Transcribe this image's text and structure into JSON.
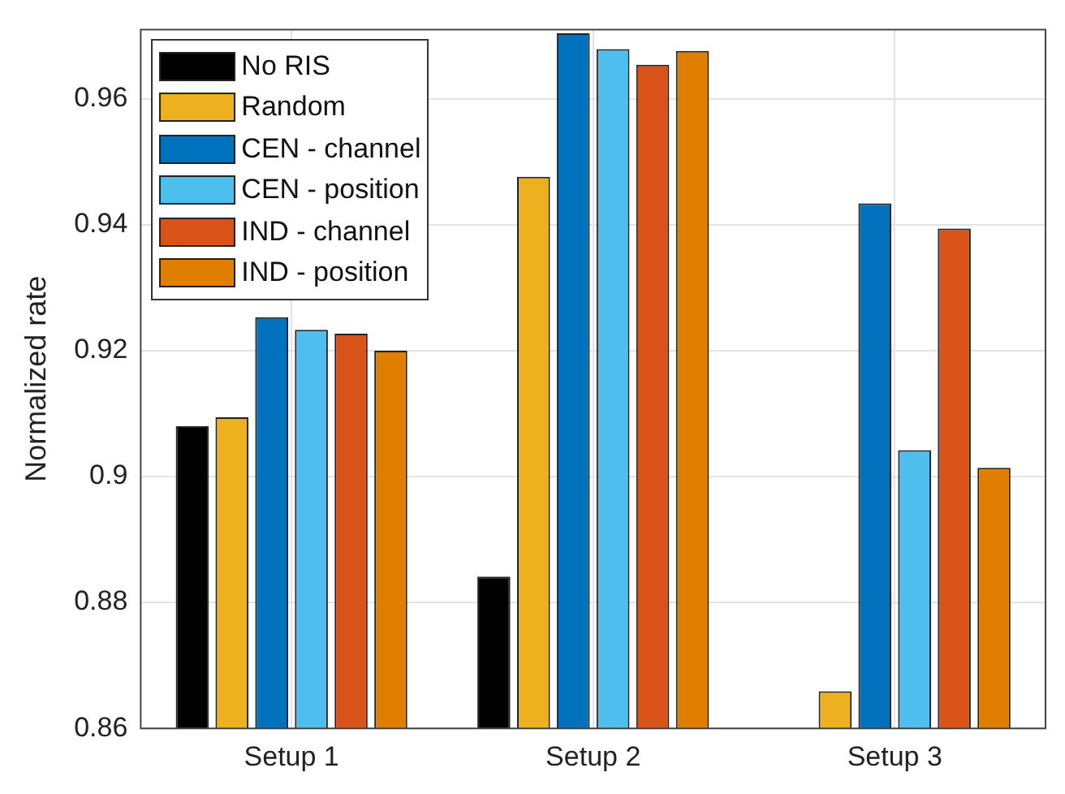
{
  "chart_data": {
    "type": "bar",
    "ylabel": "Normalized rate",
    "categories": [
      "Setup 1",
      "Setup 2",
      "Setup 3"
    ],
    "series": [
      {
        "name": "No RIS",
        "color": "#000000",
        "values": [
          0.908,
          0.8841,
          null
        ]
      },
      {
        "name": "Random",
        "color": "#edb120",
        "values": [
          0.9094,
          0.9476,
          0.8659
        ]
      },
      {
        "name": "CEN - channel",
        "color": "#0072bd",
        "values": [
          0.9253,
          0.9704,
          0.9434
        ]
      },
      {
        "name": "CEN - position",
        "color": "#4dbeee",
        "values": [
          0.9233,
          0.9679,
          0.9042
        ]
      },
      {
        "name": "IND - channel",
        "color": "#d95319",
        "values": [
          0.9227,
          0.9654,
          0.9394
        ]
      },
      {
        "name": "IND - position",
        "color": "#e07e00",
        "values": [
          0.92,
          0.9676,
          0.9014
        ]
      }
    ],
    "ylim": [
      0.86,
      0.971
    ],
    "yticks": [
      0.86,
      0.88,
      0.9,
      0.92,
      0.94,
      0.96
    ],
    "grid": true,
    "legend": "top left"
  }
}
